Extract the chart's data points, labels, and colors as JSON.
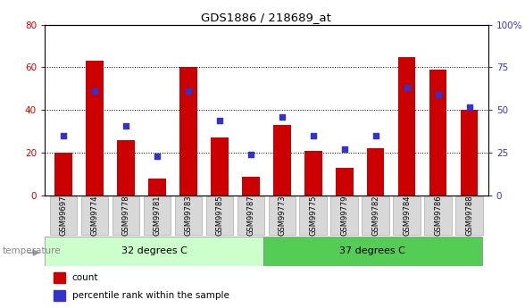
{
  "title": "GDS1886 / 218689_at",
  "samples": [
    "GSM99697",
    "GSM99774",
    "GSM99778",
    "GSM99781",
    "GSM99783",
    "GSM99785",
    "GSM99787",
    "GSM99773",
    "GSM99775",
    "GSM99779",
    "GSM99782",
    "GSM99784",
    "GSM99786",
    "GSM99788"
  ],
  "counts": [
    20,
    63,
    26,
    8,
    60,
    27,
    9,
    33,
    21,
    13,
    22,
    65,
    59,
    40
  ],
  "percentiles": [
    35,
    61,
    41,
    23,
    61,
    44,
    24,
    46,
    35,
    27,
    35,
    63,
    59,
    52
  ],
  "group1_label": "32 degrees C",
  "group2_label": "37 degrees C",
  "group1_count": 7,
  "group2_count": 7,
  "bar_color": "#cc0000",
  "dot_color": "#3333cc",
  "ylim_left": [
    0,
    80
  ],
  "ylim_right": [
    0,
    100
  ],
  "yticks_left": [
    0,
    20,
    40,
    60,
    80
  ],
  "yticks_right": [
    0,
    25,
    50,
    75,
    100
  ],
  "ytick_labels_right": [
    "0",
    "25",
    "50",
    "75",
    "100%"
  ],
  "legend_count": "count",
  "legend_percentile": "percentile rank within the sample",
  "temp_label": "temperature",
  "group1_bg": "#ccffcc",
  "group2_bg": "#55cc55",
  "tick_label_bg": "#d8d8d8",
  "background_color": "#ffffff"
}
